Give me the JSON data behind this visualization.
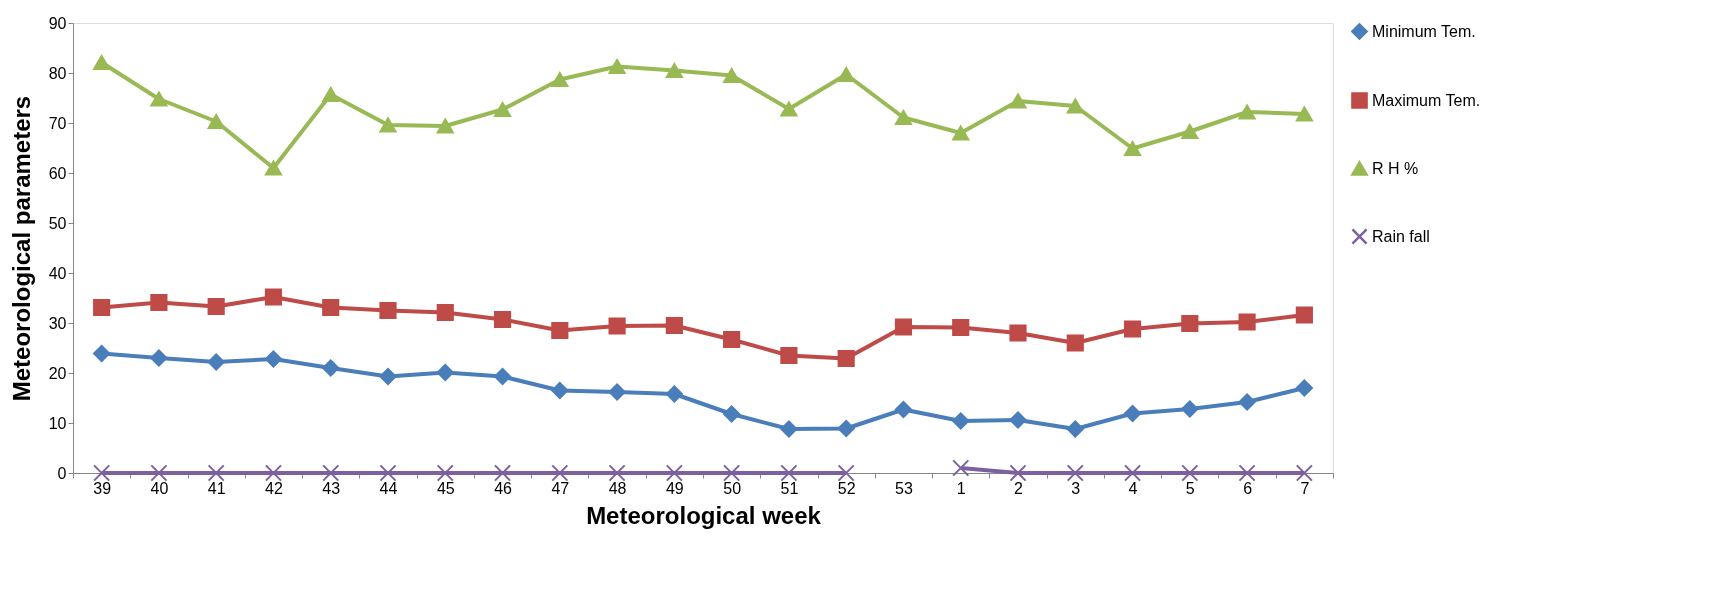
{
  "chart_data": {
    "type": "line",
    "xlabel": "Meteorological week",
    "ylabel": "Meteorological parameters",
    "categories": [
      "39",
      "40",
      "41",
      "42",
      "43",
      "44",
      "45",
      "46",
      "47",
      "48",
      "49",
      "50",
      "51",
      "52",
      "53",
      "1",
      "2",
      "3",
      "4",
      "5",
      "6",
      "7"
    ],
    "series": [
      {
        "name": "Minimum Tem.",
        "color": "#4a7ebb",
        "marker": "diamond",
        "values": [
          23.9,
          23,
          22.2,
          22.8,
          21,
          19.3,
          20.1,
          19.3,
          16.5,
          16.2,
          15.8,
          11.8,
          8.8,
          8.9,
          12.7,
          10.4,
          10.6,
          8.8,
          11.9,
          12.8,
          14.2,
          17
        ]
      },
      {
        "name": "Maximum Tem.",
        "color": "#be4b48",
        "marker": "square",
        "values": [
          33.1,
          34.1,
          33.3,
          35.2,
          33.1,
          32.5,
          32.1,
          30.7,
          28.5,
          29.4,
          29.5,
          26.7,
          23.5,
          22.9,
          29.2,
          29.1,
          28,
          26,
          28.8,
          29.9,
          30.2,
          31.6
        ]
      },
      {
        "name": "R H %",
        "color": "#98b954",
        "marker": "triangle",
        "values": [
          82.1,
          74.8,
          70.3,
          61,
          75.7,
          69.6,
          69.4,
          72.7,
          78.7,
          81.3,
          80.5,
          79.5,
          72.8,
          79.7,
          71.1,
          68,
          74.4,
          73.4,
          64.9,
          68.3,
          72.2,
          71.8
        ]
      },
      {
        "name": "Rain fall",
        "color": "#7d60a0",
        "marker": "cross",
        "values": [
          0,
          0,
          0,
          0,
          0,
          0,
          0,
          0,
          0,
          0,
          0,
          0,
          0,
          0,
          null,
          1,
          0,
          0,
          0,
          0,
          0,
          0
        ]
      }
    ],
    "ylim": [
      0,
      90
    ],
    "yticks": [
      0,
      10,
      20,
      30,
      40,
      50,
      60,
      70,
      80,
      90
    ],
    "grid": false,
    "legend": "right",
    "line_style": "solid"
  }
}
